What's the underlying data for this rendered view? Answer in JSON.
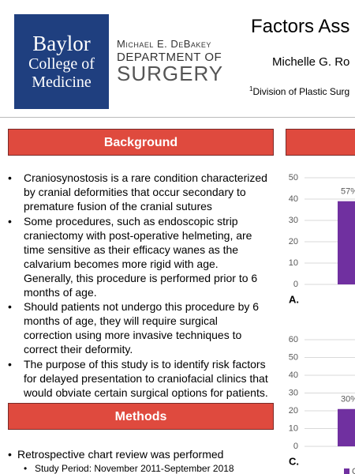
{
  "header": {
    "logo": [
      "Baylor",
      "College of",
      "Medicine"
    ],
    "department": [
      "Michael E. DeBakey",
      "DEPARTMENT OF",
      "SURGERY"
    ],
    "title": "Factors Ass",
    "author": "Michelle G. Ro",
    "affiliation_mark": "1",
    "affiliation": "Division of Plastic Surg"
  },
  "sections": [
    {
      "heading": "Background",
      "bullets": [
        [
          "Craniosynostosis is a rare condition characterized",
          "by cranial deformities that occur secondary to",
          "premature fusion of the cranial sutures"
        ],
        [
          "Some procedures, such as endoscopic strip",
          "craniectomy with post-operative helmeting, are",
          "time sensitive as their efficacy wanes as the",
          "calvarium becomes more rigid with age.",
          "Generally, this procedure is performed prior to 6",
          "months of age."
        ],
        [
          "Should patients not undergo this procedure by 6",
          "months of age, they will require surgical",
          "correction using more invasive techniques to",
          "correct their deformity."
        ],
        [
          "The purpose of this study is to identify risk factors",
          "for delayed presentation to craniofacial clinics that",
          "would obviate certain surgical options for patients."
        ]
      ]
    },
    {
      "heading": "Methods",
      "bullets": [
        [
          "Retrospective chart review was performed"
        ]
      ],
      "sub_bullets": [
        "Study Period: November 2011-September 2018"
      ]
    }
  ],
  "charts": [
    {
      "type": "bar",
      "ylim": [
        0,
        50
      ],
      "yticks": [
        0,
        10,
        20,
        30,
        40,
        50
      ],
      "values": [
        39
      ],
      "color": "#7030a0",
      "annotation": "57%",
      "panel": "A."
    },
    {
      "type": "bar",
      "ylim": [
        0,
        60
      ],
      "yticks": [
        0,
        10,
        20,
        30,
        40,
        50,
        60
      ],
      "values": [
        21
      ],
      "color": "#7030a0",
      "annotation": "30%",
      "panel": "C.",
      "legend": "C"
    }
  ]
}
